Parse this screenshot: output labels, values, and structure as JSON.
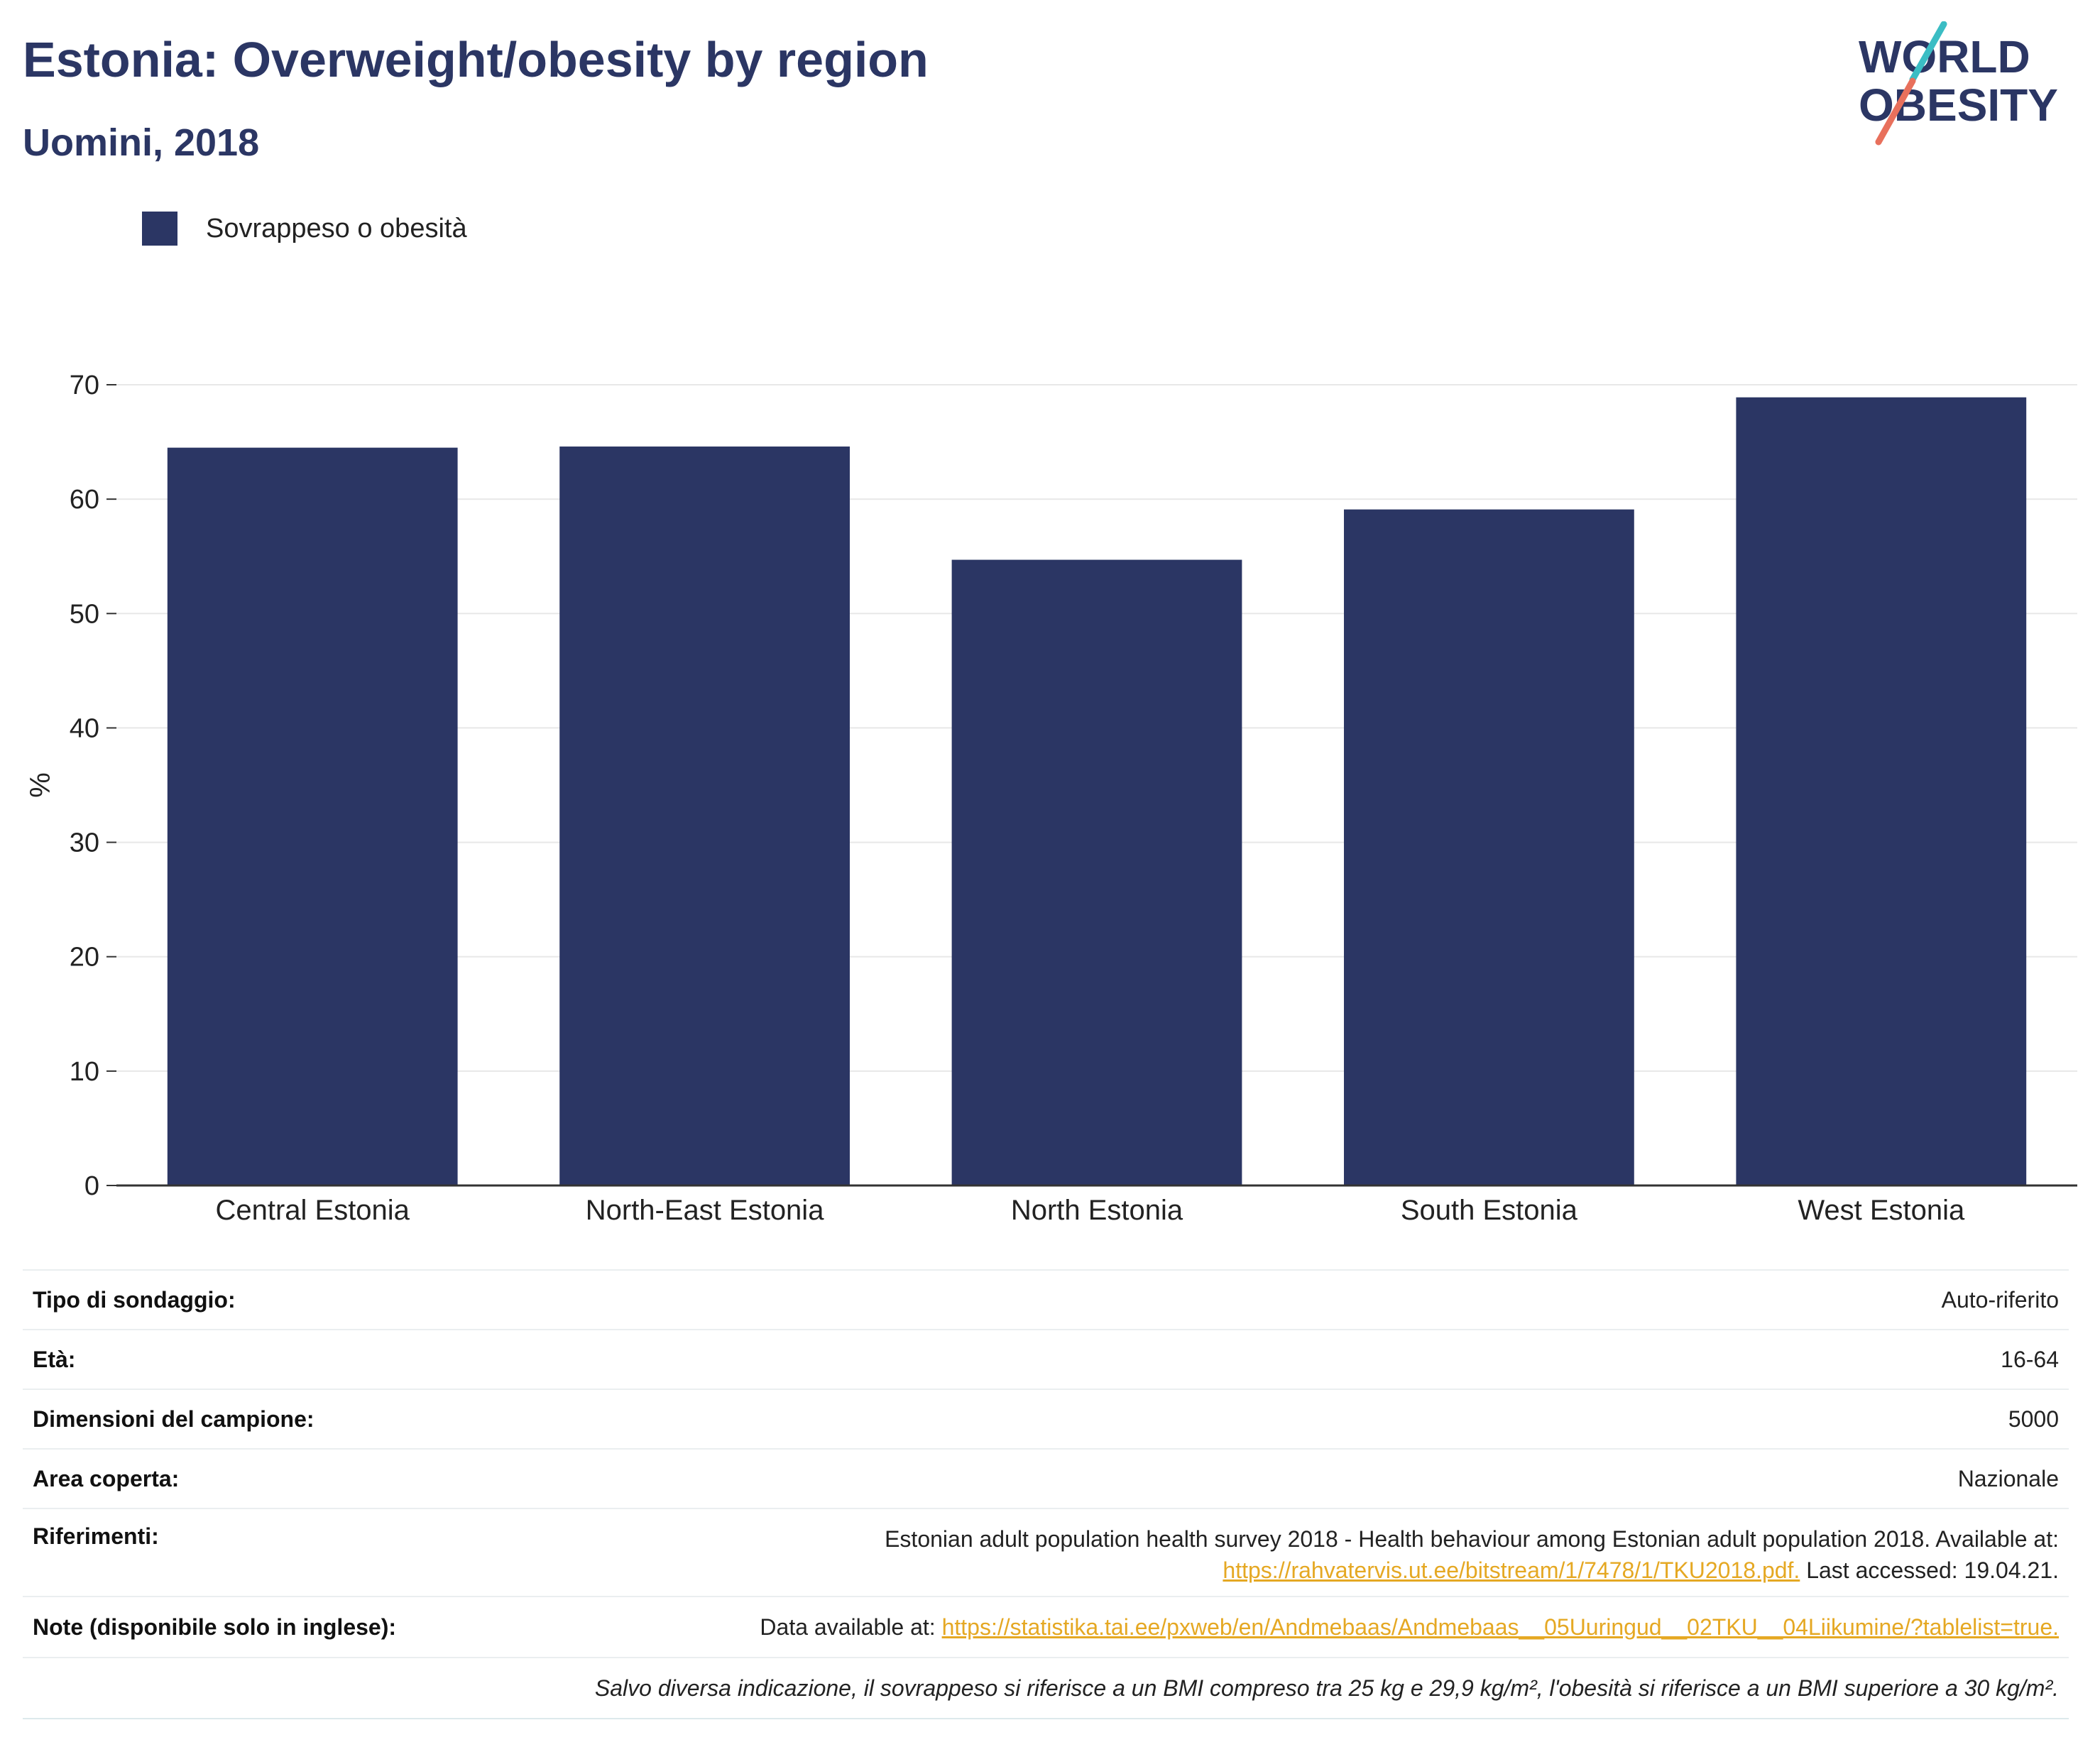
{
  "header": {
    "title": "Estonia: Overweight/obesity by region",
    "subtitle": "Uomini, 2018",
    "logo_line1": "WORLD",
    "logo_line2": "OBESITY"
  },
  "legend": {
    "label": "Sovrappeso o obesità",
    "color": "#2b3664"
  },
  "chart_data": {
    "type": "bar",
    "title": "Estonia: Overweight/obesity by region",
    "subtitle": "Uomini, 2018",
    "categories": [
      "Central Estonia",
      "North-East Estonia",
      "North Estonia",
      "South Estonia",
      "West Estonia"
    ],
    "series": [
      {
        "name": "Sovrappeso o obesità",
        "values": [
          64.5,
          64.6,
          54.7,
          59.1,
          68.9
        ],
        "color": "#2b3664"
      }
    ],
    "xlabel": "",
    "ylabel": "%",
    "ylim": [
      0,
      70
    ],
    "yticks": [
      0,
      10,
      20,
      30,
      40,
      50,
      60,
      70
    ],
    "grid": true,
    "legend_position": "top-left"
  },
  "info": {
    "survey_type": {
      "label": "Tipo di sondaggio:",
      "value": "Auto-riferito"
    },
    "age": {
      "label": "Età:",
      "value": "16-64"
    },
    "sample_size": {
      "label": "Dimensioni del campione:",
      "value": "5000"
    },
    "area": {
      "label": "Area coperta:",
      "value": "Nazionale"
    },
    "references": {
      "label": "Riferimenti:",
      "text": "Estonian adult population health survey 2018 - Health behaviour among Estonian adult population 2018. Available at:",
      "link": "https://rahvatervis.ut.ee/bitstream/1/7478/1/TKU2018.pdf.",
      "after": "Last accessed: 19.04.21."
    },
    "notes": {
      "label": "Note (disponibile solo in inglese):",
      "prefix": "Data available at:",
      "link": "https://statistika.tai.ee/pxweb/en/Andmebaas/Andmebaas__05Uuringud__02TKU__04Liikumine/?tablelist=true."
    },
    "footnote": "Salvo diversa indicazione, il sovrappeso si riferisce a un BMI compreso tra 25 kg e 29,9 kg/m², l'obesità si riferisce a un BMI superiore a 30 kg/m²."
  }
}
